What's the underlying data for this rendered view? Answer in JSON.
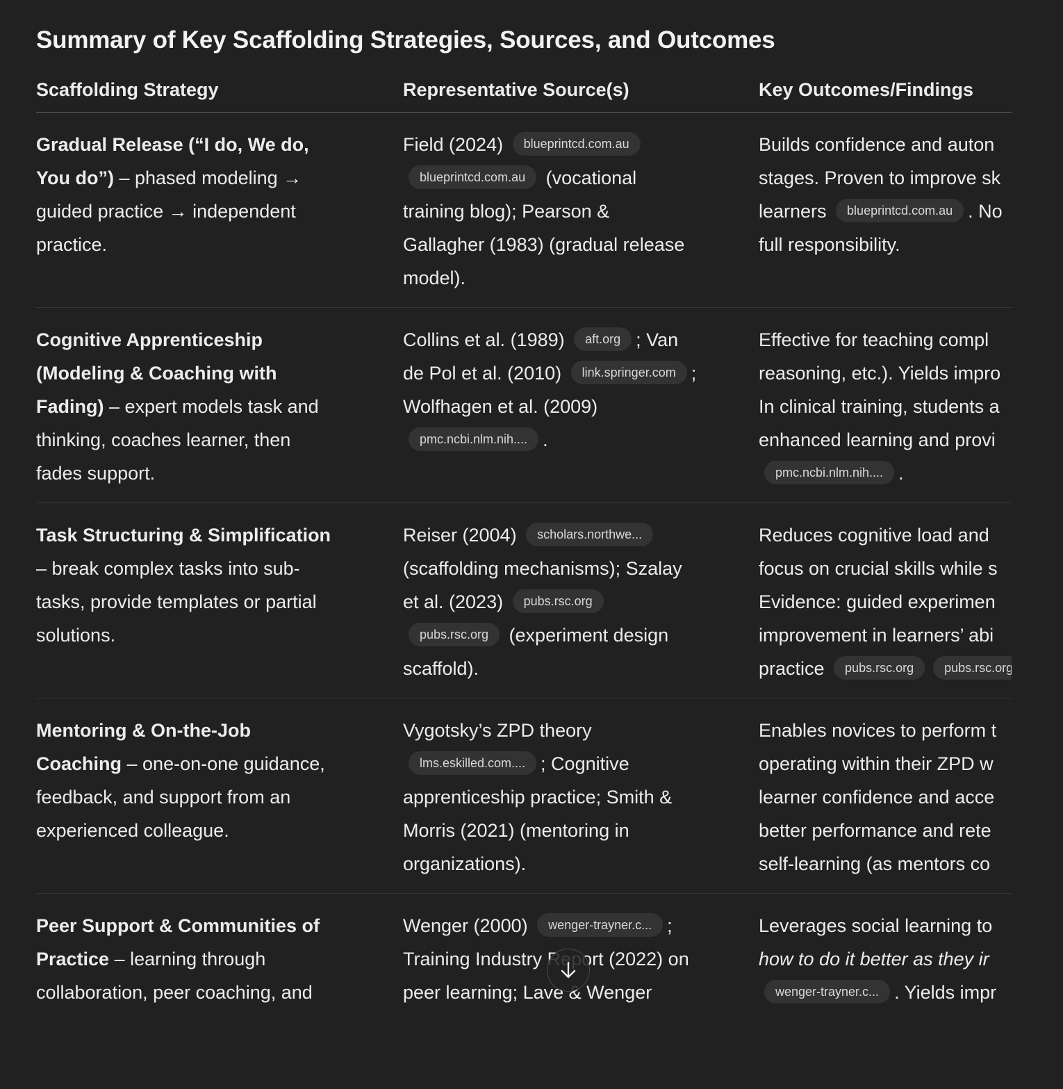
{
  "title": "Summary of Key Scaffolding Strategies, Sources, and Outcomes",
  "table": {
    "headers": [
      "Scaffolding Strategy",
      "Representative Source(s)",
      "Key Outcomes/Findings"
    ],
    "rows": [
      {
        "cells": [
          {
            "lines": [
              [
                {
                  "text": "Gradual Release (“I do, We do,",
                  "style": "b"
                }
              ],
              [
                {
                  "text": "You do”)",
                  "style": "b"
                },
                {
                  "text": " – phased modeling →"
                }
              ],
              [
                {
                  "text": "guided practice → independent"
                }
              ],
              [
                {
                  "text": "practice."
                }
              ]
            ]
          },
          {
            "lines": [
              [
                {
                  "text": "Field (2024) "
                },
                {
                  "text": "blueprintcd.com.au",
                  "style": "chip"
                }
              ],
              [
                {
                  "text": "blueprintcd.com.au",
                  "style": "chip"
                },
                {
                  "text": " (vocational"
                }
              ],
              [
                {
                  "text": "training blog); Pearson &"
                }
              ],
              [
                {
                  "text": "Gallagher (1983) (gradual release"
                }
              ],
              [
                {
                  "text": "model)."
                }
              ]
            ]
          },
          {
            "lines": [
              [
                {
                  "text": "Builds confidence and auton"
                }
              ],
              [
                {
                  "text": "stages. Proven to improve sk"
                }
              ],
              [
                {
                  "text": "learners "
                },
                {
                  "text": "blueprintcd.com.au",
                  "style": "chip"
                },
                {
                  "text": ". No"
                }
              ],
              [
                {
                  "text": "full responsibility."
                }
              ]
            ]
          }
        ]
      },
      {
        "cells": [
          {
            "lines": [
              [
                {
                  "text": "Cognitive Apprenticeship",
                  "style": "b"
                }
              ],
              [
                {
                  "text": "(Modeling & Coaching with",
                  "style": "b"
                }
              ],
              [
                {
                  "text": "Fading)",
                  "style": "b"
                },
                {
                  "text": " – expert models task and"
                }
              ],
              [
                {
                  "text": "thinking, coaches learner, then"
                }
              ],
              [
                {
                  "text": "fades support."
                }
              ]
            ]
          },
          {
            "lines": [
              [
                {
                  "text": "Collins et al. (1989) "
                },
                {
                  "text": "aft.org",
                  "style": "chip"
                },
                {
                  "text": "; Van"
                }
              ],
              [
                {
                  "text": "de Pol et al. (2010) "
                },
                {
                  "text": "link.springer.com",
                  "style": "chip"
                },
                {
                  "text": ";"
                }
              ],
              [
                {
                  "text": "Wolfhagen et al. (2009)"
                }
              ],
              [
                {
                  "text": "pmc.ncbi.nlm.nih....",
                  "style": "chip"
                },
                {
                  "text": "."
                }
              ]
            ]
          },
          {
            "lines": [
              [
                {
                  "text": "Effective for teaching compl"
                }
              ],
              [
                {
                  "text": "reasoning, etc.). Yields impro"
                }
              ],
              [
                {
                  "text": "In clinical training, students a"
                }
              ],
              [
                {
                  "text": "enhanced learning and provi"
                }
              ],
              [
                {
                  "text": "pmc.ncbi.nlm.nih....",
                  "style": "chip"
                },
                {
                  "text": "."
                }
              ]
            ]
          }
        ]
      },
      {
        "cells": [
          {
            "lines": [
              [
                {
                  "text": "Task Structuring & Simplification",
                  "style": "b"
                }
              ],
              [
                {
                  "text": "– break complex tasks into sub-"
                }
              ],
              [
                {
                  "text": "tasks, provide templates or partial"
                }
              ],
              [
                {
                  "text": "solutions."
                }
              ]
            ]
          },
          {
            "lines": [
              [
                {
                  "text": "Reiser (2004) "
                },
                {
                  "text": "scholars.northwe...",
                  "style": "chip"
                }
              ],
              [
                {
                  "text": "(scaffolding mechanisms); Szalay"
                }
              ],
              [
                {
                  "text": "et al. (2023) "
                },
                {
                  "text": "pubs.rsc.org",
                  "style": "chip"
                }
              ],
              [
                {
                  "text": "pubs.rsc.org",
                  "style": "chip"
                },
                {
                  "text": " (experiment design"
                }
              ],
              [
                {
                  "text": "scaffold)."
                }
              ]
            ]
          },
          {
            "lines": [
              [
                {
                  "text": "Reduces cognitive load and"
                }
              ],
              [
                {
                  "text": "focus on crucial skills while s"
                }
              ],
              [
                {
                  "text": "Evidence: guided experimen"
                }
              ],
              [
                {
                  "text": "improvement in learners’ abi"
                }
              ],
              [
                {
                  "text": "practice "
                },
                {
                  "text": "pubs.rsc.org",
                  "style": "chip"
                },
                {
                  "text": "pubs.rsc.org",
                  "style": "chip"
                }
              ]
            ]
          }
        ]
      },
      {
        "cells": [
          {
            "lines": [
              [
                {
                  "text": "Mentoring & On-the-Job",
                  "style": "b"
                }
              ],
              [
                {
                  "text": "Coaching",
                  "style": "b"
                },
                {
                  "text": " – one-on-one guidance,"
                }
              ],
              [
                {
                  "text": "feedback, and support from an"
                }
              ],
              [
                {
                  "text": "experienced colleague."
                }
              ]
            ]
          },
          {
            "lines": [
              [
                {
                  "text": "Vygotsky’s ZPD theory"
                }
              ],
              [
                {
                  "text": "lms.eskilled.com....",
                  "style": "chip"
                },
                {
                  "text": "; Cognitive"
                }
              ],
              [
                {
                  "text": "apprenticeship practice; Smith &"
                }
              ],
              [
                {
                  "text": "Morris (2021) (mentoring in"
                }
              ],
              [
                {
                  "text": "organizations)."
                }
              ]
            ]
          },
          {
            "lines": [
              [
                {
                  "text": "Enables novices to perform t"
                }
              ],
              [
                {
                  "text": "operating within their ZPD w"
                }
              ],
              [
                {
                  "text": "learner confidence and acce"
                }
              ],
              [
                {
                  "text": "better performance and rete"
                }
              ],
              [
                {
                  "text": "self-learning (as mentors co"
                }
              ]
            ]
          }
        ]
      },
      {
        "cells": [
          {
            "lines": [
              [
                {
                  "text": "Peer Support & Communities of",
                  "style": "b"
                }
              ],
              [
                {
                  "text": "Practice",
                  "style": "b"
                },
                {
                  "text": " – learning through"
                }
              ],
              [
                {
                  "text": "collaboration, peer coaching, and"
                }
              ]
            ]
          },
          {
            "lines": [
              [
                {
                  "text": "Wenger (2000) "
                },
                {
                  "text": "wenger-trayner.c...",
                  "style": "chip"
                },
                {
                  "text": ";"
                }
              ],
              [
                {
                  "text": "Training Industry Report (2022) on"
                }
              ],
              [
                {
                  "text": "peer learning; Lave & Wenger"
                }
              ]
            ]
          },
          {
            "lines": [
              [
                {
                  "text": "Leverages social learning to"
                }
              ],
              [
                {
                  "text": "how to do it better as they ir",
                  "style": "i"
                }
              ],
              [
                {
                  "text": "wenger-trayner.c...",
                  "style": "chip"
                },
                {
                  "text": ". Yields impr"
                }
              ]
            ]
          }
        ]
      }
    ]
  },
  "scroll_button": {
    "icon": "arrow-down-icon"
  },
  "colors": {
    "background": "#212121",
    "text": "#ececec",
    "chip_bg": "#333333",
    "divider": "#353535"
  }
}
